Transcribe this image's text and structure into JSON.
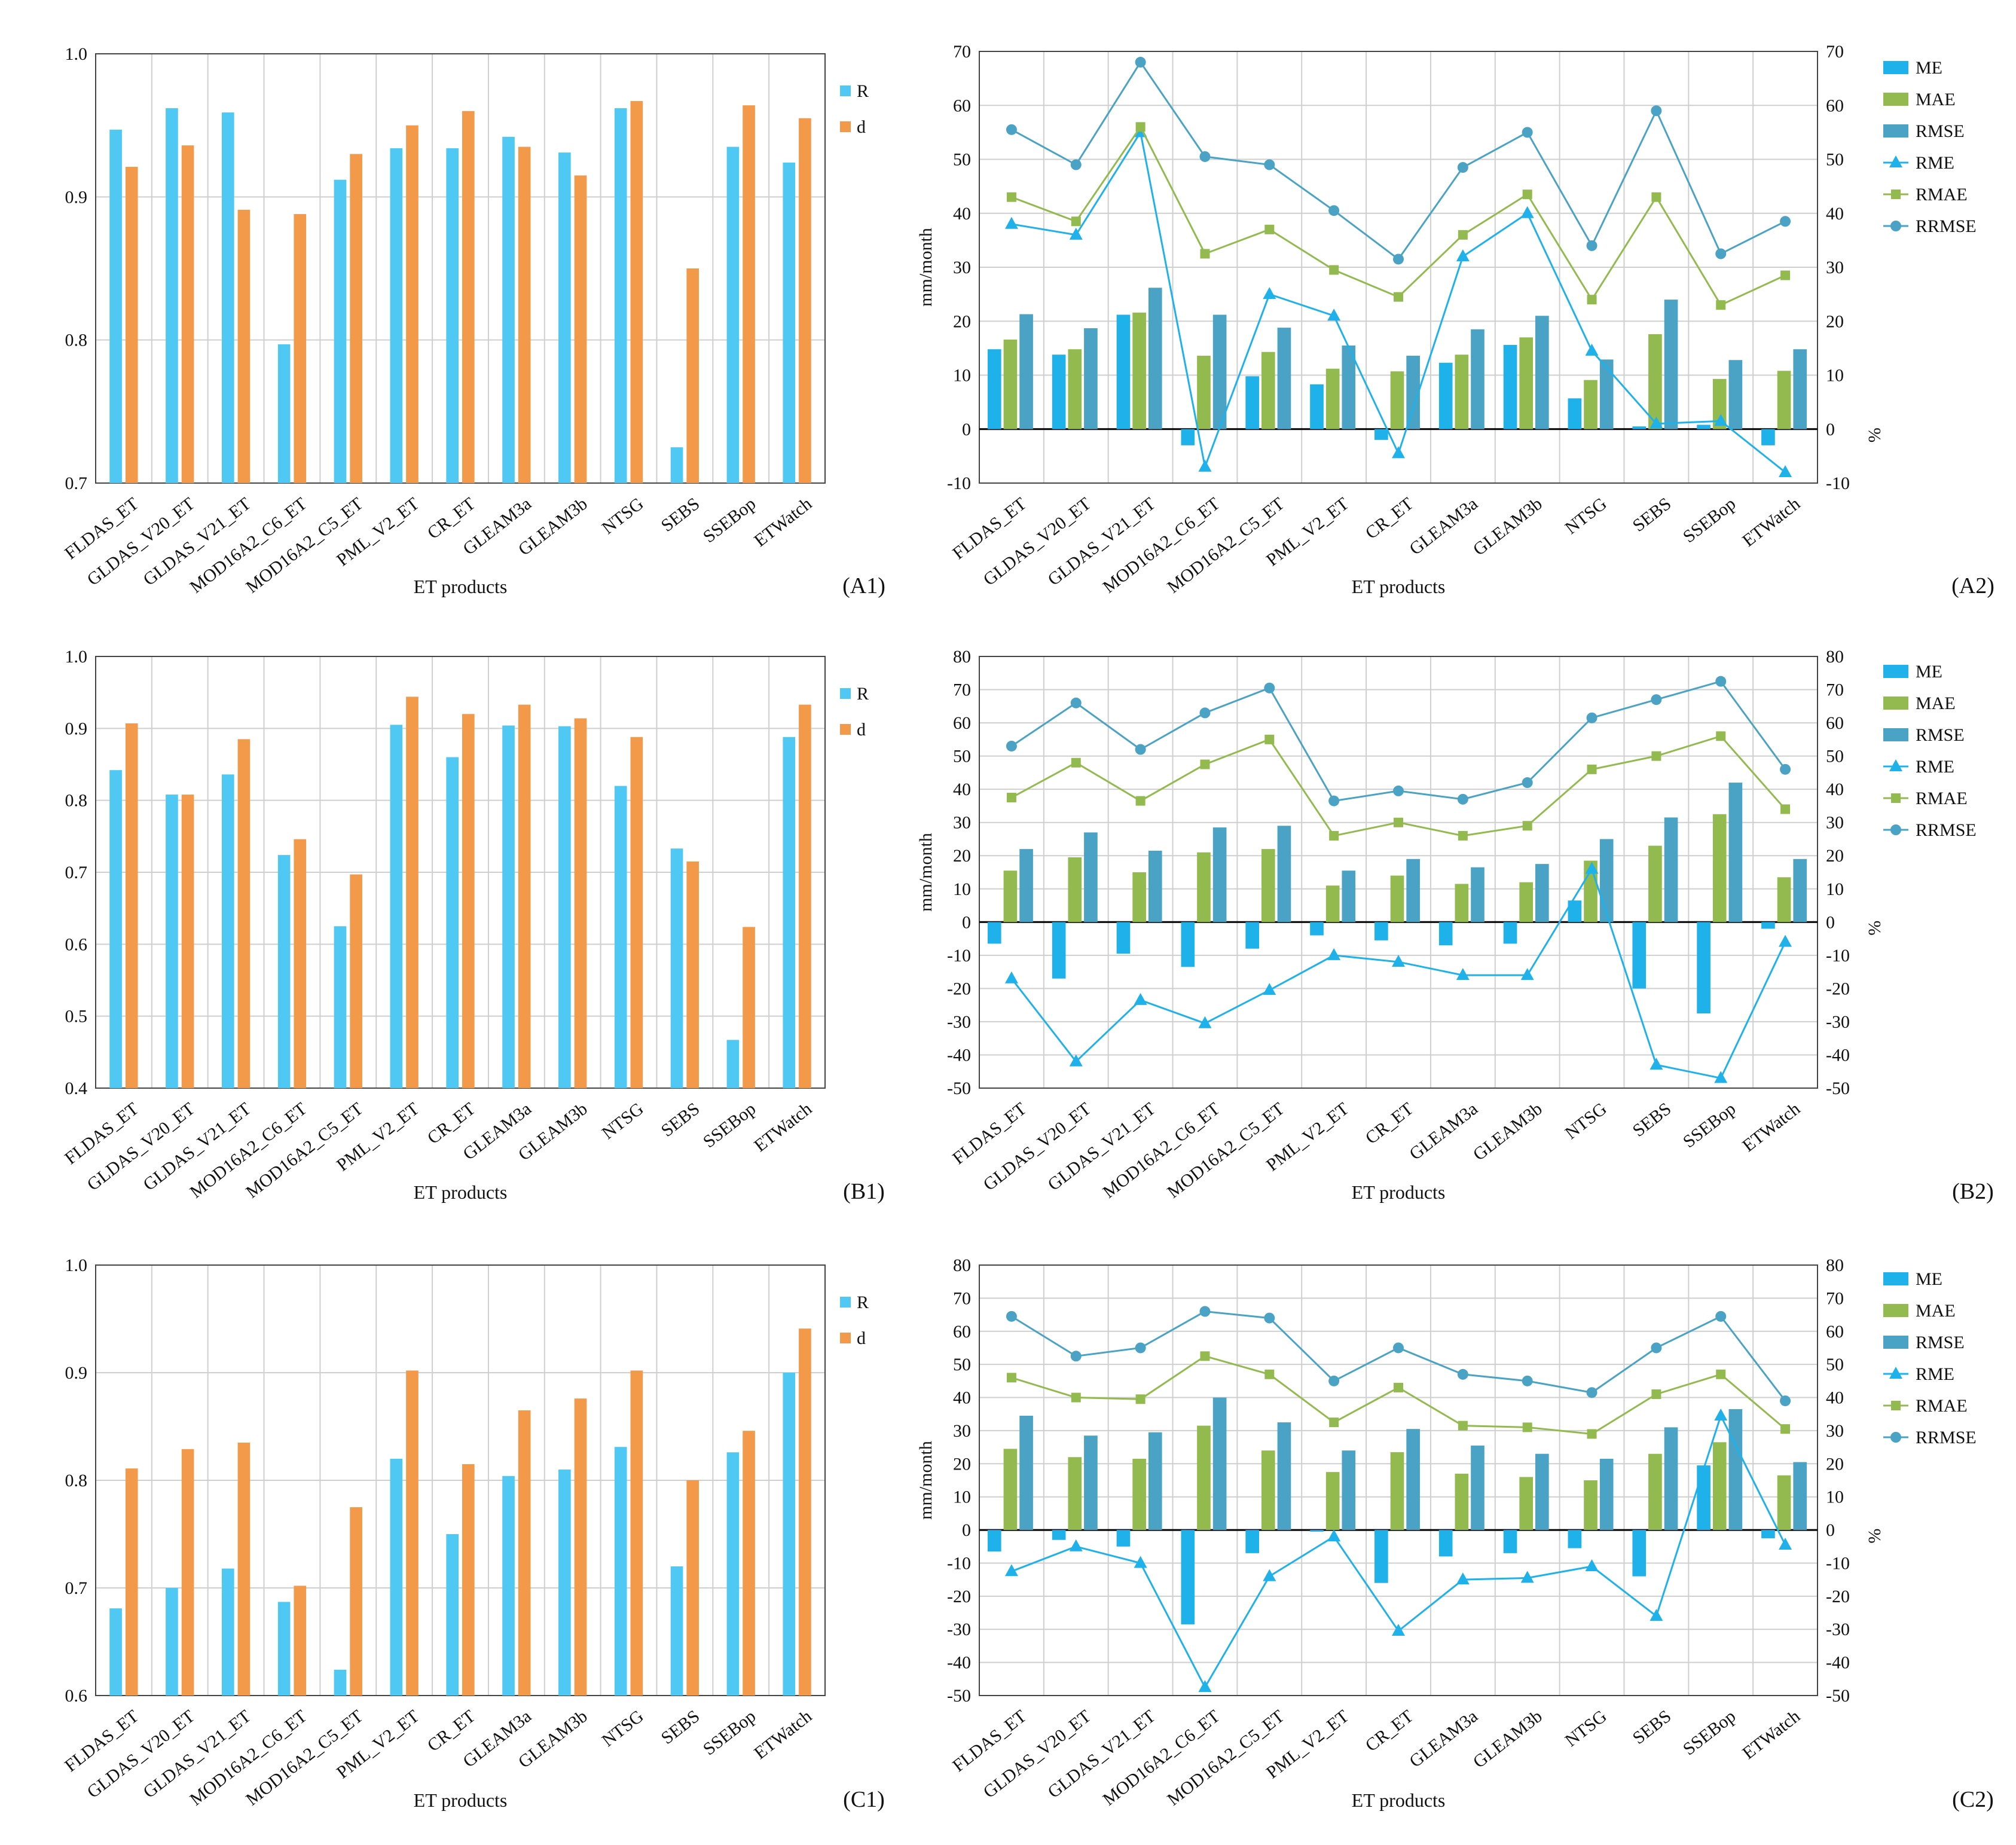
{
  "colors": {
    "R": "#4fc9f3",
    "d": "#f39a4a",
    "ME": "#1fb1ea",
    "MAE": "#93ba4f",
    "RMSE": "#4aa3c4",
    "RME": "#1fb1ea",
    "RMAE": "#93ba4f",
    "RRMSE": "#4aa3c4",
    "grid": "#cfcfcf",
    "axis": "#000000"
  },
  "chart_data": [
    {
      "id": "A1",
      "type": "bar",
      "panel_label": "(A1)",
      "categories": [
        "FLDAS_ET",
        "GLDAS_V20_ET",
        "GLDAS_V21_ET",
        "MOD16A2_C6_ET",
        "MOD16A2_C5_ET",
        "PML_V2_ET",
        "CR_ET",
        "GLEAM3a",
        "GLEAM3b",
        "NTSG",
        "SEBS",
        "SSEBop",
        "ETWatch"
      ],
      "series": [
        {
          "name": "R",
          "values": [
            0.947,
            0.962,
            0.959,
            0.797,
            0.912,
            0.934,
            0.934,
            0.942,
            0.931,
            0.962,
            0.725,
            0.935,
            0.924
          ]
        },
        {
          "name": "d",
          "values": [
            0.921,
            0.936,
            0.891,
            0.888,
            0.93,
            0.95,
            0.96,
            0.935,
            0.915,
            0.967,
            0.85,
            0.964,
            0.955
          ]
        }
      ],
      "xlabel": "ET products",
      "ylim": [
        0.7,
        1.0
      ],
      "yticks": [
        "0.7",
        "0.8",
        "0.9",
        "1.0"
      ]
    },
    {
      "id": "A2",
      "type": "bar",
      "panel_label": "(A2)",
      "categories": [
        "FLDAS_ET",
        "GLDAS_V20_ET",
        "GLDAS_V21_ET",
        "MOD16A2_C6_ET",
        "MOD16A2_C5_ET",
        "PML_V2_ET",
        "CR_ET",
        "GLEAM3a",
        "GLEAM3b",
        "NTSG",
        "SEBS",
        "SSEBop",
        "ETWatch"
      ],
      "bar_series": [
        {
          "name": "ME",
          "values": [
            14.8,
            13.8,
            21.2,
            -3.0,
            9.8,
            8.3,
            -2.0,
            12.3,
            15.6,
            5.7,
            0.5,
            0.8,
            -3.0
          ]
        },
        {
          "name": "MAE",
          "values": [
            16.6,
            14.8,
            21.6,
            13.6,
            14.3,
            11.2,
            10.7,
            13.8,
            17.0,
            9.1,
            17.6,
            9.3,
            10.8
          ]
        },
        {
          "name": "RMSE",
          "values": [
            21.3,
            18.7,
            26.2,
            21.2,
            18.8,
            15.5,
            13.6,
            18.5,
            21.0,
            12.9,
            24.0,
            12.8,
            14.8
          ]
        }
      ],
      "line_series": [
        {
          "name": "RME",
          "values": [
            38.0,
            36.0,
            55.0,
            -7.0,
            25.0,
            21.0,
            -4.5,
            32.0,
            40.0,
            14.5,
            1.0,
            1.5,
            -8.0
          ]
        },
        {
          "name": "RMAE",
          "values": [
            43.0,
            38.5,
            56.0,
            32.5,
            37.0,
            29.5,
            24.5,
            36.0,
            43.5,
            24.0,
            43.0,
            23.0,
            28.5
          ]
        },
        {
          "name": "RRMSE",
          "values": [
            55.5,
            49.0,
            68.0,
            50.5,
            49.0,
            40.5,
            31.5,
            48.5,
            55.0,
            34.0,
            59.0,
            32.5,
            38.5
          ]
        }
      ],
      "xlabel": "ET products",
      "ylabel": "mm/month",
      "y2label": "%",
      "ylim": [
        -10,
        70
      ],
      "y2lim": [
        -10,
        70
      ],
      "yticks": [
        "-10",
        "0",
        "10",
        "20",
        "30",
        "40",
        "50",
        "60",
        "70"
      ],
      "legend": [
        "ME",
        "MAE",
        "RMSE",
        "RME",
        "RMAE",
        "RRMSE"
      ]
    },
    {
      "id": "B1",
      "type": "bar",
      "panel_label": "(B1)",
      "categories": [
        "FLDAS_ET",
        "GLDAS_V20_ET",
        "GLDAS_V21_ET",
        "MOD16A2_C6_ET",
        "MOD16A2_C5_ET",
        "PML_V2_ET",
        "CR_ET",
        "GLEAM3a",
        "GLEAM3b",
        "NTSG",
        "SEBS",
        "SSEBop",
        "ETWatch"
      ],
      "series": [
        {
          "name": "R",
          "values": [
            0.842,
            0.808,
            0.836,
            0.724,
            0.625,
            0.905,
            0.86,
            0.904,
            0.903,
            0.82,
            0.733,
            0.467,
            0.888
          ]
        },
        {
          "name": "d",
          "values": [
            0.907,
            0.808,
            0.885,
            0.746,
            0.697,
            0.944,
            0.92,
            0.933,
            0.914,
            0.888,
            0.715,
            0.624,
            0.933
          ]
        }
      ],
      "xlabel": "ET products",
      "ylim": [
        0.4,
        1.0
      ],
      "yticks": [
        "0.4",
        "0.5",
        "0.6",
        "0.7",
        "0.8",
        "0.9",
        "1.0"
      ]
    },
    {
      "id": "B2",
      "type": "bar",
      "panel_label": "(B2)",
      "categories": [
        "FLDAS_ET",
        "GLDAS_V20_ET",
        "GLDAS_V21_ET",
        "MOD16A2_C6_ET",
        "MOD16A2_C5_ET",
        "PML_V2_ET",
        "CR_ET",
        "GLEAM3a",
        "GLEAM3b",
        "NTSG",
        "SEBS",
        "SSEBop",
        "ETWatch"
      ],
      "bar_series": [
        {
          "name": "ME",
          "values": [
            -6.5,
            -17.0,
            -9.5,
            -13.5,
            -8.0,
            -4.0,
            -5.5,
            -7.0,
            -6.5,
            6.5,
            -20.0,
            -27.5,
            -2.0
          ]
        },
        {
          "name": "MAE",
          "values": [
            15.5,
            19.5,
            15.0,
            21.0,
            22.0,
            11.0,
            14.0,
            11.5,
            12.0,
            18.5,
            23.0,
            32.5,
            13.5
          ]
        },
        {
          "name": "RMSE",
          "values": [
            22.0,
            27.0,
            21.5,
            28.5,
            29.0,
            15.5,
            19.0,
            16.5,
            17.5,
            25.0,
            31.5,
            42.0,
            19.0
          ]
        }
      ],
      "line_series": [
        {
          "name": "RME",
          "values": [
            -17.0,
            -42.0,
            -23.5,
            -30.5,
            -20.5,
            -10.0,
            -12.0,
            -16.0,
            -16.0,
            16.0,
            -43.0,
            -47.0,
            -6.0
          ]
        },
        {
          "name": "RMAE",
          "values": [
            37.5,
            48.0,
            36.5,
            47.5,
            55.0,
            26.0,
            30.0,
            26.0,
            29.0,
            46.0,
            50.0,
            56.0,
            34.0
          ]
        },
        {
          "name": "RRMSE",
          "values": [
            53.0,
            66.0,
            52.0,
            63.0,
            70.5,
            36.5,
            39.5,
            37.0,
            42.0,
            61.5,
            67.0,
            72.5,
            46.0
          ]
        }
      ],
      "xlabel": "ET products",
      "ylabel": "mm/month",
      "y2label": "%",
      "ylim": [
        -50,
        80
      ],
      "y2lim": [
        -50,
        80
      ],
      "yticks": [
        "-50",
        "-40",
        "-30",
        "-20",
        "-10",
        "0",
        "10",
        "20",
        "30",
        "40",
        "50",
        "60",
        "70",
        "80"
      ],
      "legend": [
        "ME",
        "MAE",
        "RMSE",
        "RME",
        "RMAE",
        "RRMSE"
      ]
    },
    {
      "id": "C1",
      "type": "bar",
      "panel_label": "(C1)",
      "categories": [
        "FLDAS_ET",
        "GLDAS_V20_ET",
        "GLDAS_V21_ET",
        "MOD16A2_C6_ET",
        "MOD16A2_C5_ET",
        "PML_V2_ET",
        "CR_ET",
        "GLEAM3a",
        "GLEAM3b",
        "NTSG",
        "SEBS",
        "SSEBop",
        "ETWatch"
      ],
      "series": [
        {
          "name": "R",
          "values": [
            0.681,
            0.7,
            0.718,
            0.687,
            0.624,
            0.82,
            0.75,
            0.804,
            0.81,
            0.831,
            0.72,
            0.826,
            0.9
          ]
        },
        {
          "name": "d",
          "values": [
            0.811,
            0.829,
            0.835,
            0.702,
            0.775,
            0.902,
            0.815,
            0.865,
            0.876,
            0.902,
            0.8,
            0.846,
            0.941
          ]
        }
      ],
      "xlabel": "ET products",
      "ylim": [
        0.6,
        1.0
      ],
      "yticks": [
        "0.6",
        "0.7",
        "0.8",
        "0.9",
        "1.0"
      ]
    },
    {
      "id": "C2",
      "type": "bar",
      "panel_label": "(C2)",
      "categories": [
        "FLDAS_ET",
        "GLDAS_V20_ET",
        "GLDAS_V21_ET",
        "MOD16A2_C6_ET",
        "MOD16A2_C5_ET",
        "PML_V2_ET",
        "CR_ET",
        "GLEAM3a",
        "GLEAM3b",
        "NTSG",
        "SEBS",
        "SSEBop",
        "ETWatch"
      ],
      "bar_series": [
        {
          "name": "ME",
          "values": [
            -6.5,
            -3.0,
            -5.0,
            -28.5,
            -7.0,
            -0.5,
            -16.0,
            -8.0,
            -7.0,
            -5.5,
            -14.0,
            19.5,
            -2.5
          ]
        },
        {
          "name": "MAE",
          "values": [
            24.5,
            22.0,
            21.5,
            31.5,
            24.0,
            17.5,
            23.5,
            17.0,
            16.0,
            15.0,
            23.0,
            26.5,
            16.5
          ]
        },
        {
          "name": "RMSE",
          "values": [
            34.5,
            28.5,
            29.5,
            40.0,
            32.5,
            24.0,
            30.5,
            25.5,
            23.0,
            21.5,
            31.0,
            36.5,
            20.5
          ]
        }
      ],
      "line_series": [
        {
          "name": "RME",
          "values": [
            -12.5,
            -5.0,
            -10.0,
            -47.5,
            -14.0,
            -2.0,
            -30.5,
            -15.0,
            -14.5,
            -11.0,
            -26.0,
            34.5,
            -4.5
          ]
        },
        {
          "name": "RMAE",
          "values": [
            46.0,
            40.0,
            39.5,
            52.5,
            47.0,
            32.5,
            43.0,
            31.5,
            31.0,
            29.0,
            41.0,
            47.0,
            30.5
          ]
        },
        {
          "name": "RRMSE",
          "values": [
            64.5,
            52.5,
            55.0,
            66.0,
            64.0,
            45.0,
            55.0,
            47.0,
            45.0,
            41.5,
            55.0,
            64.5,
            39.0
          ]
        }
      ],
      "xlabel": "ET products",
      "ylabel": "mm/month",
      "y2label": "%",
      "ylim": [
        -50,
        80
      ],
      "y2lim": [
        -50,
        80
      ],
      "yticks": [
        "-50",
        "-40",
        "-30",
        "-20",
        "-10",
        "0",
        "10",
        "20",
        "30",
        "40",
        "50",
        "60",
        "70",
        "80"
      ],
      "legend": [
        "ME",
        "MAE",
        "RMSE",
        "RME",
        "RMAE",
        "RRMSE"
      ]
    }
  ]
}
